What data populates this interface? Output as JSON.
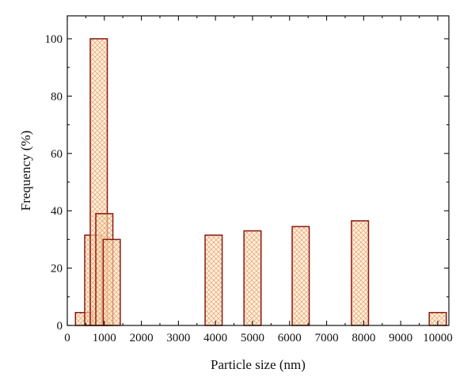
{
  "chart_data": {
    "type": "bar",
    "xlabel": "Particle size (nm)",
    "ylabel": "Frequency (%)",
    "xlim": [
      0,
      10300
    ],
    "ylim": [
      0,
      108
    ],
    "x_ticks": [
      0,
      1000,
      2000,
      3000,
      4000,
      5000,
      6000,
      7000,
      8000,
      9000,
      10000
    ],
    "x_tick_labels": [
      "0",
      "1000",
      "2000",
      "3000",
      "4000",
      "5000",
      "6000",
      "7000",
      "8000",
      "9000",
      "10000"
    ],
    "y_ticks": [
      0,
      20,
      40,
      60,
      80,
      100
    ],
    "y_tick_labels": [
      "0",
      "20",
      "40",
      "60",
      "80",
      "100"
    ],
    "grid": false,
    "bar_fill": "#fbe3c0",
    "bar_hatch": "#e8a070",
    "bar_edge": "#8b1a10",
    "bars": [
      {
        "x": 450,
        "width": 460,
        "value": 4.5
      },
      {
        "x": 700,
        "width": 460,
        "value": 31.5
      },
      {
        "x": 850,
        "width": 460,
        "value": 100
      },
      {
        "x": 1000,
        "width": 460,
        "value": 39
      },
      {
        "x": 1200,
        "width": 460,
        "value": 30
      },
      {
        "x": 3950,
        "width": 460,
        "value": 31.5
      },
      {
        "x": 5000,
        "width": 460,
        "value": 33
      },
      {
        "x": 6300,
        "width": 460,
        "value": 34.5
      },
      {
        "x": 7900,
        "width": 460,
        "value": 36.5
      },
      {
        "x": 10000,
        "width": 460,
        "value": 4.5
      }
    ]
  }
}
